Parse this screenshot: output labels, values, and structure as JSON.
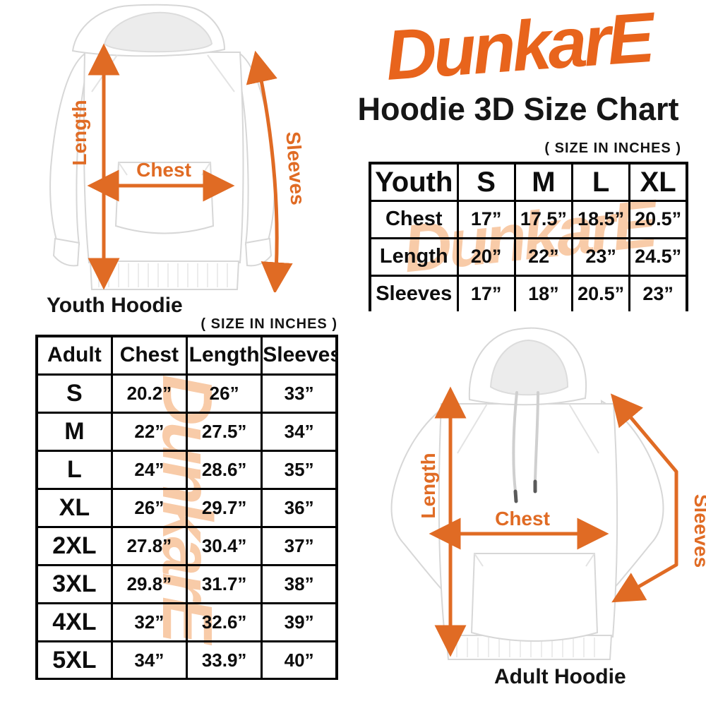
{
  "brand": {
    "logo_text": "DunkarE",
    "logo_color": "#E8641C",
    "watermark_color": "#F8CBA8"
  },
  "header": {
    "title": "Hoodie 3D Size Chart"
  },
  "colors": {
    "accent_orange": "#E8641C",
    "arrow_orange": "#E06B24",
    "table_border": "#000000",
    "background": "#ffffff",
    "text": "#141414"
  },
  "youth_section": {
    "caption": "Youth Hoodie",
    "size_note": "( SIZE IN INCHES )",
    "arrow_labels": {
      "length": "Length",
      "chest": "Chest",
      "sleeves": "Sleeves"
    }
  },
  "adult_section": {
    "caption": "Adult Hoodie",
    "size_note": "( SIZE IN INCHES )",
    "arrow_labels": {
      "length": "Length",
      "chest": "Chest",
      "sleeves": "Sleeves"
    }
  },
  "chart_data": [
    {
      "type": "table",
      "name": "youth_hoodie_sizes",
      "unit": "inches",
      "header": [
        "Youth",
        "S",
        "M",
        "L",
        "XL"
      ],
      "rows": [
        {
          "label": "Chest",
          "values": [
            "17”",
            "17.5”",
            "18.5”",
            "20.5”"
          ]
        },
        {
          "label": "Length",
          "values": [
            "20”",
            "22”",
            "23”",
            "24.5”"
          ]
        },
        {
          "label": "Sleeves",
          "values": [
            "17”",
            "18”",
            "20.5”",
            "23”"
          ]
        }
      ]
    },
    {
      "type": "table",
      "name": "adult_hoodie_sizes",
      "unit": "inches",
      "header": [
        "Adult",
        "Chest",
        "Length",
        "Sleeves"
      ],
      "rows": [
        {
          "label": "S",
          "values": [
            "20.2”",
            "26”",
            "33”"
          ]
        },
        {
          "label": "M",
          "values": [
            "22”",
            "27.5”",
            "34”"
          ]
        },
        {
          "label": "L",
          "values": [
            "24”",
            "28.6”",
            "35”"
          ]
        },
        {
          "label": "XL",
          "values": [
            "26”",
            "29.7”",
            "36”"
          ]
        },
        {
          "label": "2XL",
          "values": [
            "27.8”",
            "30.4”",
            "37”"
          ]
        },
        {
          "label": "3XL",
          "values": [
            "29.8”",
            "31.7”",
            "38”"
          ]
        },
        {
          "label": "4XL",
          "values": [
            "32”",
            "32.6”",
            "39”"
          ]
        },
        {
          "label": "5XL",
          "values": [
            "34”",
            "33.9”",
            "40”"
          ]
        }
      ]
    }
  ]
}
